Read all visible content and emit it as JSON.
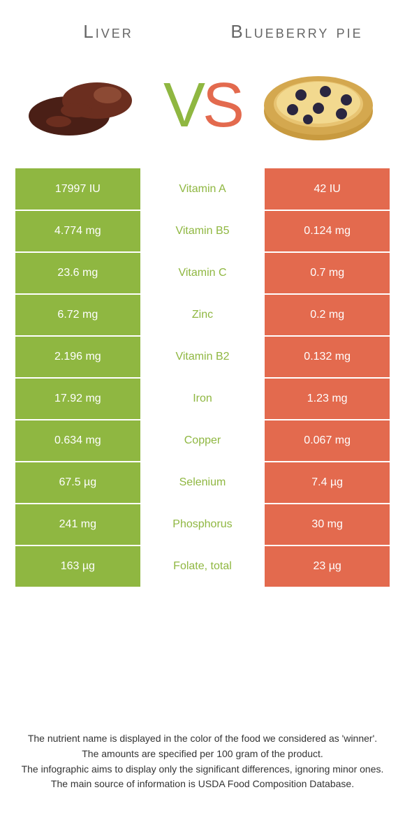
{
  "titles": {
    "left": "Liver",
    "right": "Blueberry pie"
  },
  "vs": {
    "v": "V",
    "s": "S"
  },
  "colors": {
    "green": "#8fb741",
    "orange": "#e36a4e",
    "white": "#ffffff",
    "liver_dark": "#4a1f16",
    "liver_mid": "#6b2e1f",
    "liver_light": "#8c4a34",
    "crust": "#e8c472",
    "crust_dark": "#c89a3f",
    "crust_rim": "#d4a84f",
    "blueberry": "#2a2640"
  },
  "rows": [
    {
      "nutrient": "Vitamin A",
      "left": "17997 IU",
      "right": "42 IU",
      "left_bg": "green",
      "right_bg": "orange",
      "name_color": "green"
    },
    {
      "nutrient": "Vitamin B5",
      "left": "4.774 mg",
      "right": "0.124 mg",
      "left_bg": "green",
      "right_bg": "orange",
      "name_color": "green"
    },
    {
      "nutrient": "Vitamin C",
      "left": "23.6 mg",
      "right": "0.7 mg",
      "left_bg": "green",
      "right_bg": "orange",
      "name_color": "green"
    },
    {
      "nutrient": "Zinc",
      "left": "6.72 mg",
      "right": "0.2 mg",
      "left_bg": "green",
      "right_bg": "orange",
      "name_color": "green"
    },
    {
      "nutrient": "Vitamin B2",
      "left": "2.196 mg",
      "right": "0.132 mg",
      "left_bg": "green",
      "right_bg": "orange",
      "name_color": "green"
    },
    {
      "nutrient": "Iron",
      "left": "17.92 mg",
      "right": "1.23 mg",
      "left_bg": "green",
      "right_bg": "orange",
      "name_color": "green"
    },
    {
      "nutrient": "Copper",
      "left": "0.634 mg",
      "right": "0.067 mg",
      "left_bg": "green",
      "right_bg": "orange",
      "name_color": "green"
    },
    {
      "nutrient": "Selenium",
      "left": "67.5 µg",
      "right": "7.4 µg",
      "left_bg": "green",
      "right_bg": "orange",
      "name_color": "green"
    },
    {
      "nutrient": "Phosphorus",
      "left": "241 mg",
      "right": "30 mg",
      "left_bg": "green",
      "right_bg": "orange",
      "name_color": "green"
    },
    {
      "nutrient": "Folate, total",
      "left": "163 µg",
      "right": "23 µg",
      "left_bg": "green",
      "right_bg": "orange",
      "name_color": "green"
    }
  ],
  "footer": {
    "l1": "The nutrient name is displayed in the color of the food we considered as 'winner'.",
    "l2": "The amounts are specified per 100 gram of the product.",
    "l3": "The infographic aims to display only the significant differences, ignoring minor ones.",
    "l4": "The main source of information is USDA Food Composition Database."
  }
}
